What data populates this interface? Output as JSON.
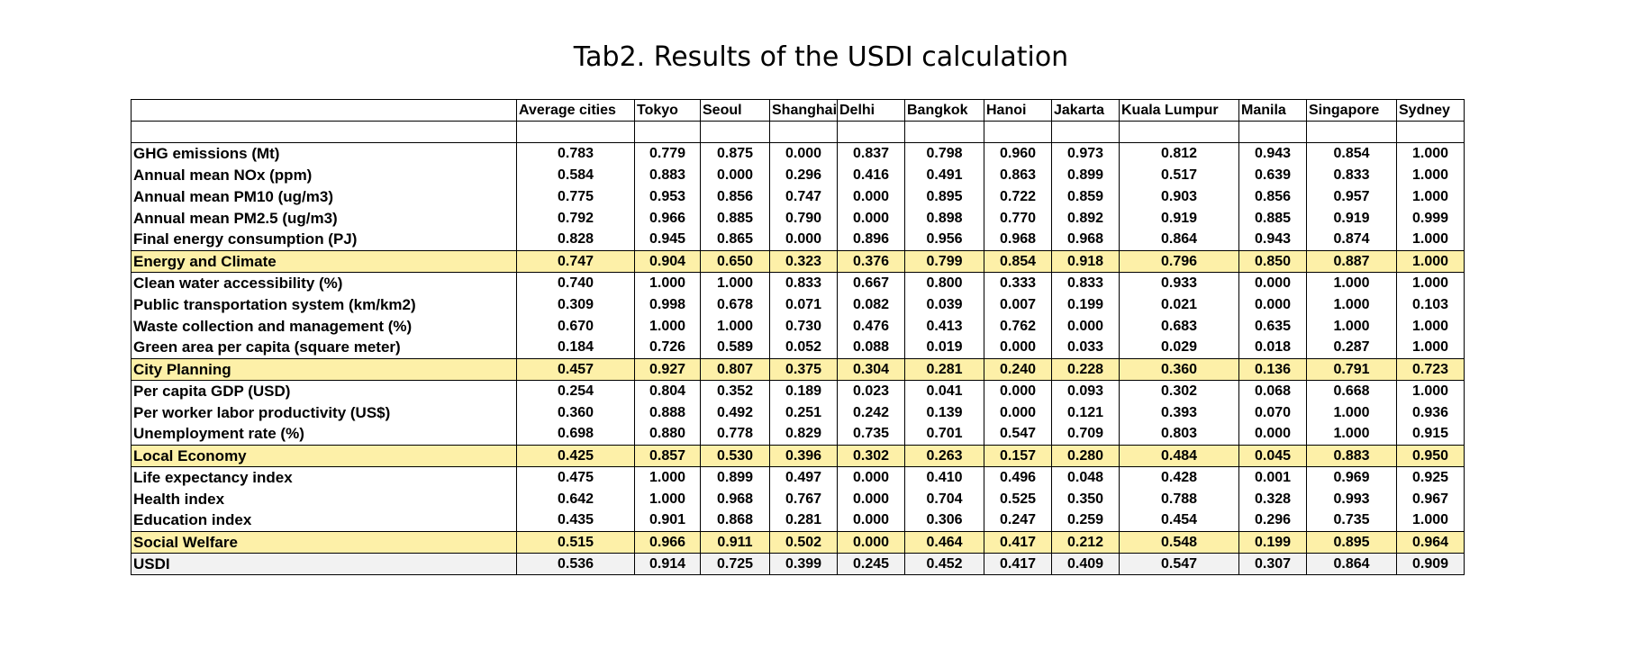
{
  "title": "Tab2. Results of the USDI calculation",
  "columns": [
    "",
    "Average cities",
    "Tokyo",
    "Seoul",
    "Shanghai",
    "Delhi",
    "Bangkok",
    "Hanoi",
    "Jakarta",
    "Kuala Lumpur",
    "Manila",
    "Singapore",
    "Sydney"
  ],
  "rows": [
    {
      "kind": "indicator",
      "label": "GHG emissions (Mt)",
      "values": [
        "0.783",
        "0.779",
        "0.875",
        "0.000",
        "0.837",
        "0.798",
        "0.960",
        "0.973",
        "0.812",
        "0.943",
        "0.854",
        "1.000"
      ]
    },
    {
      "kind": "indicator",
      "label": "Annual mean NOx (ppm)",
      "values": [
        "0.584",
        "0.883",
        "0.000",
        "0.296",
        "0.416",
        "0.491",
        "0.863",
        "0.899",
        "0.517",
        "0.639",
        "0.833",
        "1.000"
      ]
    },
    {
      "kind": "indicator",
      "label": "Annual mean PM10 (ug/m3)",
      "values": [
        "0.775",
        "0.953",
        "0.856",
        "0.747",
        "0.000",
        "0.895",
        "0.722",
        "0.859",
        "0.903",
        "0.856",
        "0.957",
        "1.000"
      ]
    },
    {
      "kind": "indicator",
      "label": "Annual mean PM2.5 (ug/m3)",
      "values": [
        "0.792",
        "0.966",
        "0.885",
        "0.790",
        "0.000",
        "0.898",
        "0.770",
        "0.892",
        "0.919",
        "0.885",
        "0.919",
        "0.999"
      ]
    },
    {
      "kind": "indicator",
      "label": "Final energy consumption (PJ)",
      "values": [
        "0.828",
        "0.945",
        "0.865",
        "0.000",
        "0.896",
        "0.956",
        "0.968",
        "0.968",
        "0.864",
        "0.943",
        "0.874",
        "1.000"
      ]
    },
    {
      "kind": "category",
      "label": "Energy and Climate",
      "values": [
        "0.747",
        "0.904",
        "0.650",
        "0.323",
        "0.376",
        "0.799",
        "0.854",
        "0.918",
        "0.796",
        "0.850",
        "0.887",
        "1.000"
      ]
    },
    {
      "kind": "indicator",
      "label": "Clean water accessibility (%)",
      "values": [
        "0.740",
        "1.000",
        "1.000",
        "0.833",
        "0.667",
        "0.800",
        "0.333",
        "0.833",
        "0.933",
        "0.000",
        "1.000",
        "1.000"
      ]
    },
    {
      "kind": "indicator",
      "label": "Public transportation system (km/km2)",
      "values": [
        "0.309",
        "0.998",
        "0.678",
        "0.071",
        "0.082",
        "0.039",
        "0.007",
        "0.199",
        "0.021",
        "0.000",
        "1.000",
        "0.103"
      ]
    },
    {
      "kind": "indicator",
      "label": "Waste collection and management (%)",
      "values": [
        "0.670",
        "1.000",
        "1.000",
        "0.730",
        "0.476",
        "0.413",
        "0.762",
        "0.000",
        "0.683",
        "0.635",
        "1.000",
        "1.000"
      ]
    },
    {
      "kind": "indicator",
      "label": "Green area per capita (square meter)",
      "values": [
        "0.184",
        "0.726",
        "0.589",
        "0.052",
        "0.088",
        "0.019",
        "0.000",
        "0.033",
        "0.029",
        "0.018",
        "0.287",
        "1.000"
      ]
    },
    {
      "kind": "category",
      "label": "City Planning",
      "values": [
        "0.457",
        "0.927",
        "0.807",
        "0.375",
        "0.304",
        "0.281",
        "0.240",
        "0.228",
        "0.360",
        "0.136",
        "0.791",
        "0.723"
      ]
    },
    {
      "kind": "indicator",
      "label": "Per capita GDP (USD)",
      "values": [
        "0.254",
        "0.804",
        "0.352",
        "0.189",
        "0.023",
        "0.041",
        "0.000",
        "0.093",
        "0.302",
        "0.068",
        "0.668",
        "1.000"
      ]
    },
    {
      "kind": "indicator",
      "label": "Per worker labor productivity (US$)",
      "values": [
        "0.360",
        "0.888",
        "0.492",
        "0.251",
        "0.242",
        "0.139",
        "0.000",
        "0.121",
        "0.393",
        "0.070",
        "1.000",
        "0.936"
      ]
    },
    {
      "kind": "indicator",
      "label": "Unemployment rate (%)",
      "values": [
        "0.698",
        "0.880",
        "0.778",
        "0.829",
        "0.735",
        "0.701",
        "0.547",
        "0.709",
        "0.803",
        "0.000",
        "1.000",
        "0.915"
      ]
    },
    {
      "kind": "category",
      "label": "Local Economy",
      "values": [
        "0.425",
        "0.857",
        "0.530",
        "0.396",
        "0.302",
        "0.263",
        "0.157",
        "0.280",
        "0.484",
        "0.045",
        "0.883",
        "0.950"
      ]
    },
    {
      "kind": "indicator",
      "label": "Life expectancy index",
      "values": [
        "0.475",
        "1.000",
        "0.899",
        "0.497",
        "0.000",
        "0.410",
        "0.496",
        "0.048",
        "0.428",
        "0.001",
        "0.969",
        "0.925"
      ]
    },
    {
      "kind": "indicator",
      "label": "Health index",
      "values": [
        "0.642",
        "1.000",
        "0.968",
        "0.767",
        "0.000",
        "0.704",
        "0.525",
        "0.350",
        "0.788",
        "0.328",
        "0.993",
        "0.967"
      ]
    },
    {
      "kind": "indicator",
      "label": "Education index",
      "values": [
        "0.435",
        "0.901",
        "0.868",
        "0.281",
        "0.000",
        "0.306",
        "0.247",
        "0.259",
        "0.454",
        "0.296",
        "0.735",
        "1.000"
      ]
    },
    {
      "kind": "category",
      "label": "Social Welfare",
      "values": [
        "0.515",
        "0.966",
        "0.911",
        "0.502",
        "0.000",
        "0.464",
        "0.417",
        "0.212",
        "0.548",
        "0.199",
        "0.895",
        "0.964"
      ]
    },
    {
      "kind": "total",
      "label": "USDI",
      "values": [
        "0.536",
        "0.914",
        "0.725",
        "0.399",
        "0.245",
        "0.452",
        "0.417",
        "0.409",
        "0.547",
        "0.307",
        "0.864",
        "0.909"
      ]
    }
  ],
  "colors": {
    "category_fill": "#fdf0a8",
    "total_fill": "#f2f2f2"
  }
}
